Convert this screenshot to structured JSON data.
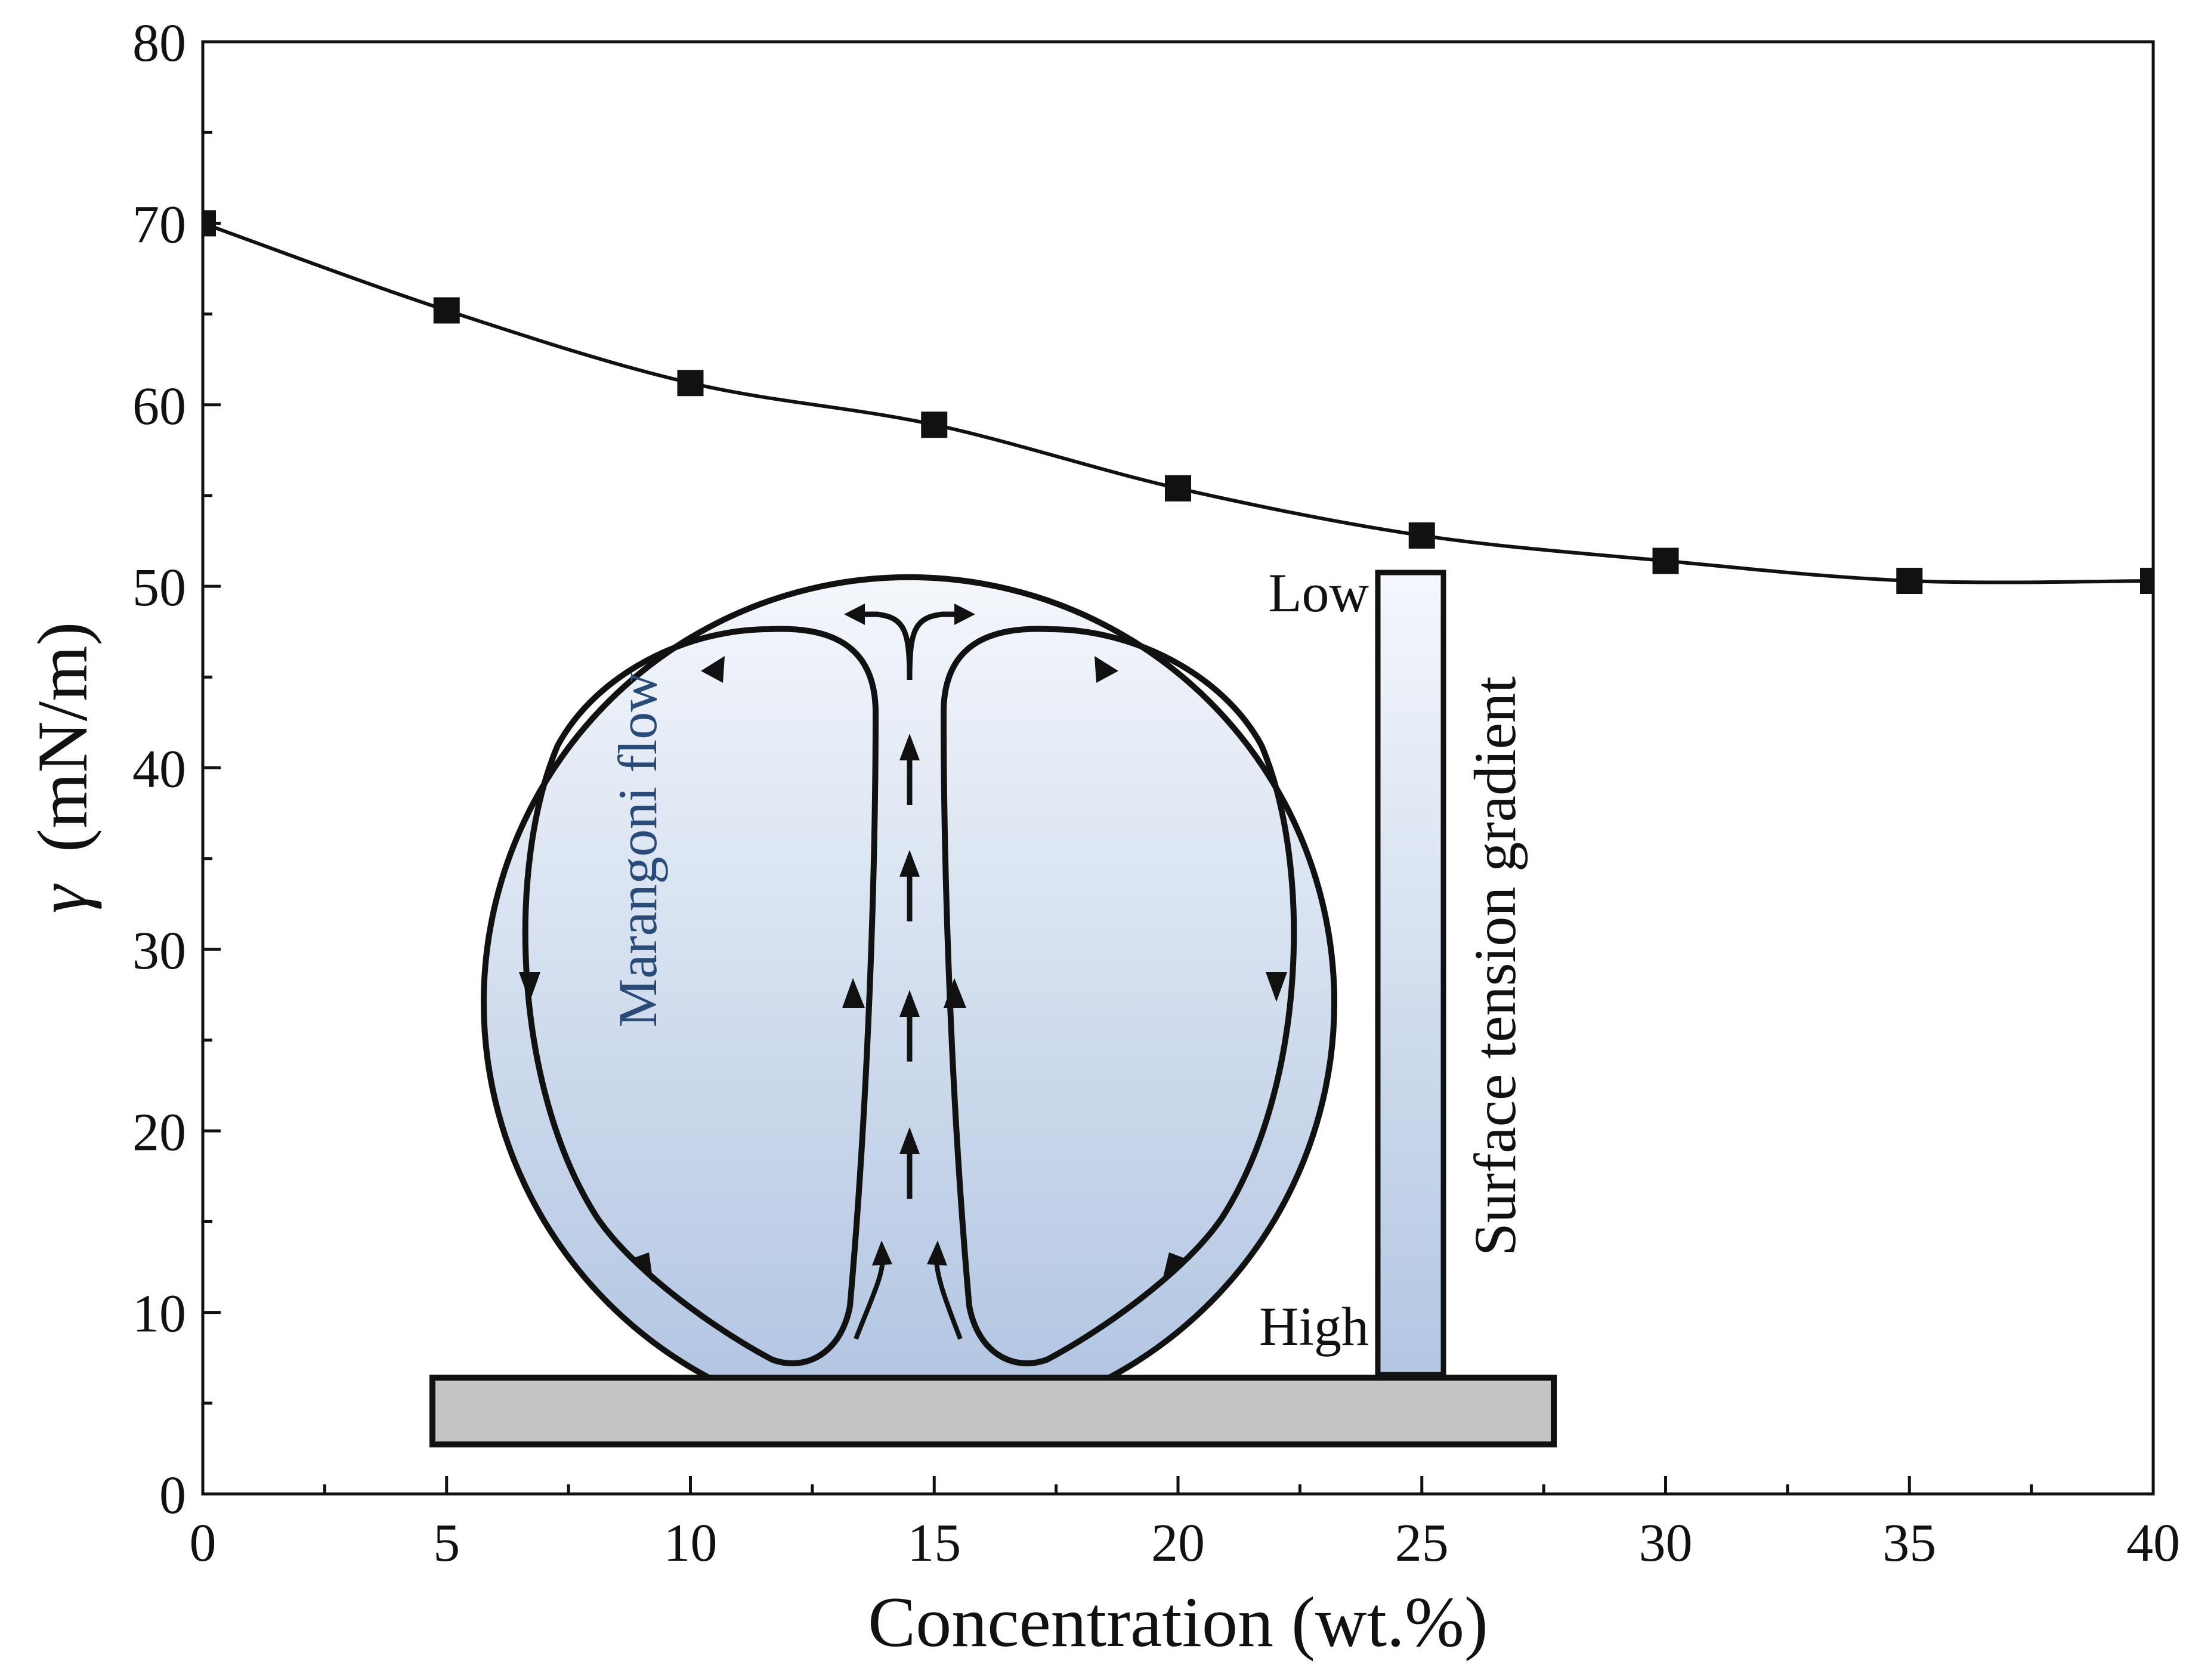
{
  "chart_data": {
    "type": "line",
    "title": "",
    "xlabel": "Concentration (wt.%)",
    "ylabel_symbol": "γ",
    "ylabel_unit": "(mN/m)",
    "xlim": [
      0,
      40
    ],
    "ylim": [
      0,
      80
    ],
    "xticks": [
      0,
      5,
      10,
      15,
      20,
      25,
      30,
      35,
      40
    ],
    "yticks": [
      0,
      10,
      20,
      30,
      40,
      50,
      60,
      70,
      80
    ],
    "grid": false,
    "marker": "square",
    "series": [
      {
        "name": "surface tension",
        "x": [
          0,
          5,
          10,
          15,
          20,
          25,
          30,
          35,
          40
        ],
        "y": [
          70.0,
          65.2,
          61.2,
          58.9,
          55.4,
          52.8,
          51.4,
          50.3,
          50.3
        ]
      }
    ]
  },
  "inset": {
    "flow_label": "Marangoni flow",
    "gradient_label": "Surface tension gradient",
    "low_label": "Low",
    "high_label": "High",
    "colors": {
      "droplet_top": "#f4f7fc",
      "droplet_bottom": "#b3c6e2",
      "substrate": "#c4c4c4",
      "flow_text": "#2a4a78"
    }
  }
}
